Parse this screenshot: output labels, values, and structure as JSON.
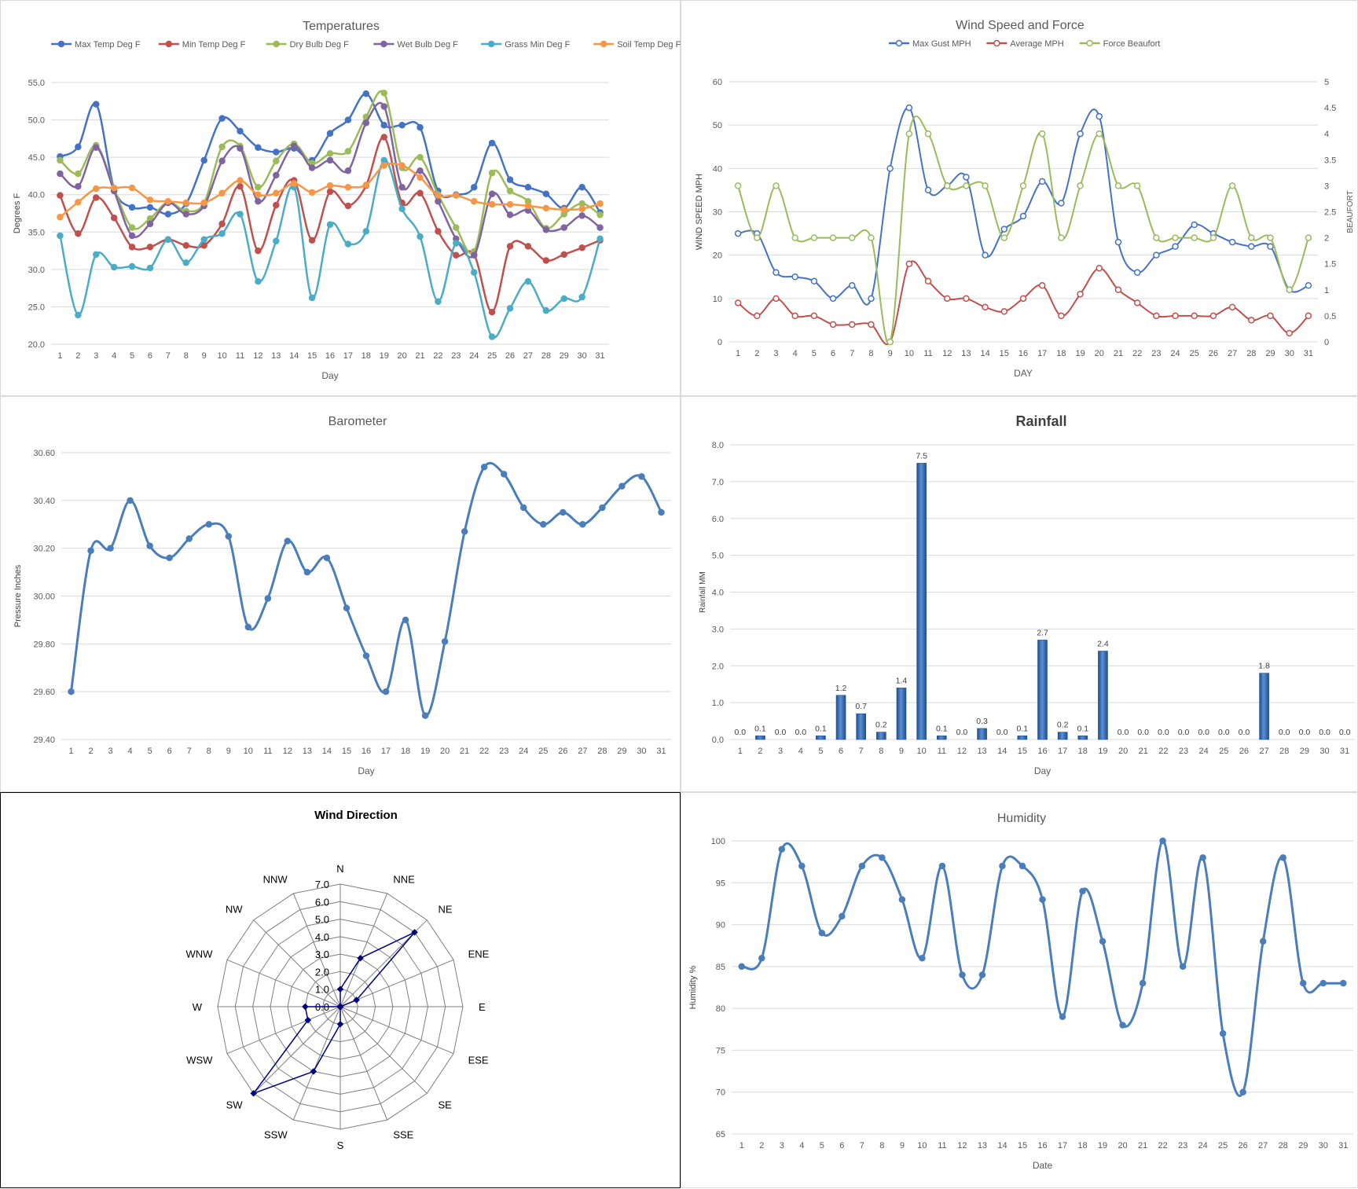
{
  "chart_data": [
    {
      "id": "temperatures",
      "type": "line",
      "title": "Temperatures",
      "xlabel": "Day",
      "ylabel": "Degrees F",
      "ylim": [
        20,
        55
      ],
      "yticks": [
        "20.0",
        "25.0",
        "30.0",
        "35.0",
        "40.0",
        "45.0",
        "50.0",
        "55.0"
      ],
      "grid": true,
      "legend": "top",
      "x": [
        1,
        2,
        3,
        4,
        5,
        6,
        7,
        8,
        9,
        10,
        11,
        12,
        13,
        14,
        15,
        16,
        17,
        18,
        19,
        20,
        21,
        22,
        23,
        24,
        25,
        26,
        27,
        28,
        29,
        30,
        31
      ],
      "series": [
        {
          "name": "Max Temp Deg F",
          "color": "#4472c4",
          "values": [
            45.1,
            46.4,
            52.1,
            40.8,
            38.3,
            38.3,
            37.4,
            38.8,
            44.6,
            50.2,
            48.5,
            46.3,
            45.7,
            46.2,
            44.6,
            48.2,
            50.0,
            53.5,
            49.3,
            49.3,
            49.0,
            40.5,
            40.0,
            41.0,
            46.9,
            42.0,
            41.0,
            40.1,
            38.2,
            41.0,
            37.6
          ]
        },
        {
          "name": "Min Temp Deg F",
          "color": "#c0504d",
          "values": [
            39.9,
            34.8,
            39.6,
            36.9,
            33.0,
            33.0,
            34.0,
            33.2,
            33.2,
            36.1,
            41.1,
            32.5,
            38.6,
            41.9,
            33.9,
            40.4,
            38.5,
            41.2,
            47.7,
            38.9,
            40.2,
            35.1,
            31.9,
            32.0,
            24.3,
            33.1,
            33.1,
            31.2,
            32.0,
            32.9,
            33.9
          ]
        },
        {
          "name": "Dry Bulb Deg F",
          "color": "#9bbb59",
          "values": [
            44.6,
            42.8,
            46.6,
            40.8,
            35.6,
            36.8,
            39.0,
            37.8,
            38.9,
            46.4,
            46.5,
            41.0,
            44.5,
            46.8,
            44.2,
            45.5,
            45.8,
            50.4,
            53.6,
            43.6,
            45.0,
            40.0,
            35.6,
            32.4,
            42.9,
            40.5,
            39.1,
            35.5,
            37.4,
            38.8,
            37.3
          ]
        },
        {
          "name": "Wet Bulb Deg F",
          "color": "#8064a2",
          "values": [
            42.8,
            41.1,
            46.3,
            40.5,
            34.5,
            36.1,
            38.9,
            37.4,
            38.5,
            44.5,
            46.2,
            39.1,
            42.6,
            46.5,
            43.6,
            44.6,
            43.2,
            49.6,
            51.8,
            41.0,
            43.2,
            39.1,
            34.1,
            31.9,
            40.1,
            37.3,
            37.9,
            35.3,
            35.6,
            37.2,
            35.6
          ]
        },
        {
          "name": "Grass Min Deg F",
          "color": "#4bacc6",
          "values": [
            34.5,
            23.9,
            32.0,
            30.3,
            30.4,
            30.2,
            34.0,
            30.9,
            34.0,
            34.8,
            37.4,
            28.4,
            33.8,
            41.0,
            26.2,
            36.0,
            33.4,
            35.1,
            44.6,
            38.1,
            34.4,
            25.7,
            33.5,
            29.6,
            21.0,
            24.8,
            28.4,
            24.5,
            26.1,
            26.3,
            34.1
          ]
        },
        {
          "name": "Soil Temp Deg F",
          "color": "#f79646",
          "values": [
            37.0,
            39.0,
            40.8,
            40.9,
            40.9,
            39.3,
            39.1,
            38.9,
            38.9,
            40.2,
            41.9,
            40.0,
            40.2,
            41.5,
            40.3,
            41.2,
            41.0,
            41.3,
            43.9,
            43.9,
            42.3,
            39.9,
            39.9,
            39.1,
            38.7,
            38.7,
            38.5,
            38.2,
            38.0,
            38.1,
            38.8
          ]
        }
      ]
    },
    {
      "id": "wind",
      "type": "line",
      "title": "Wind Speed and Force",
      "xlabel": "DAY",
      "ylabel": "WIND SPEED MPH",
      "ylabel_right": "BEAUFORT",
      "ylim": [
        0,
        60
      ],
      "ylim_right": [
        0,
        5
      ],
      "yticks": [
        "0",
        "10",
        "20",
        "30",
        "40",
        "50",
        "60"
      ],
      "yticks_right": [
        "0",
        "0.5",
        "1",
        "1.5",
        "2",
        "2.5",
        "3",
        "3.5",
        "4",
        "4.5",
        "5"
      ],
      "grid": true,
      "legend": "top",
      "x": [
        1,
        2,
        3,
        4,
        5,
        6,
        7,
        8,
        9,
        10,
        11,
        12,
        13,
        14,
        15,
        16,
        17,
        18,
        19,
        20,
        21,
        22,
        23,
        24,
        25,
        26,
        27,
        28,
        29,
        30,
        31
      ],
      "series": [
        {
          "name": "Max Gust MPH",
          "color": "#4472c4",
          "axis": "left",
          "values": [
            25,
            25,
            16,
            15,
            14,
            10,
            13,
            10,
            40,
            54,
            35,
            36,
            38,
            20,
            26,
            29,
            37,
            32,
            48,
            52,
            23,
            16,
            20,
            22,
            27,
            25,
            23,
            22,
            22,
            12,
            13
          ]
        },
        {
          "name": "Average MPH",
          "color": "#c0504d",
          "axis": "left",
          "values": [
            9,
            6,
            10,
            6,
            6,
            4,
            4,
            4,
            0,
            18,
            14,
            10,
            10,
            8,
            7,
            10,
            13,
            6,
            11,
            17,
            12,
            9,
            6,
            6,
            6,
            6,
            8,
            5,
            6,
            2,
            6
          ]
        },
        {
          "name": "Force Beaufort",
          "color": "#9bbb59",
          "axis": "right",
          "values": [
            3,
            2,
            3,
            2,
            2,
            2,
            2,
            2,
            0,
            4,
            4,
            3,
            3,
            3,
            2,
            3,
            4,
            2,
            3,
            4,
            3,
            3,
            2,
            2,
            2,
            2,
            3,
            2,
            2,
            1,
            2
          ]
        }
      ]
    },
    {
      "id": "barometer",
      "type": "line",
      "title": "Barometer",
      "xlabel": "Day",
      "ylabel": "Pressure Inches",
      "ylim": [
        29.4,
        30.6
      ],
      "yticks": [
        "29.40",
        "29.60",
        "29.80",
        "30.00",
        "30.20",
        "30.40",
        "30.60"
      ],
      "grid": true,
      "x": [
        1,
        2,
        3,
        4,
        5,
        6,
        7,
        8,
        9,
        10,
        11,
        12,
        13,
        14,
        15,
        16,
        17,
        18,
        19,
        20,
        21,
        22,
        23,
        24,
        25,
        26,
        27,
        28,
        29,
        30,
        31
      ],
      "series": [
        {
          "color": "#4a7ebb",
          "values": [
            29.6,
            30.19,
            30.2,
            30.4,
            30.21,
            30.16,
            30.24,
            30.3,
            30.25,
            29.87,
            29.99,
            30.23,
            30.1,
            30.16,
            29.95,
            29.75,
            29.6,
            29.9,
            29.5,
            29.81,
            30.27,
            30.54,
            30.51,
            30.37,
            30.3,
            30.35,
            30.3,
            30.37,
            30.46,
            30.5,
            30.35
          ]
        }
      ]
    },
    {
      "id": "rainfall",
      "type": "bar",
      "title": "Rainfall",
      "xlabel": "Day",
      "ylabel": "Rainfall MM",
      "ylim": [
        0,
        8
      ],
      "yticks": [
        "0.0",
        "1.0",
        "2.0",
        "3.0",
        "4.0",
        "5.0",
        "6.0",
        "7.0",
        "8.0"
      ],
      "grid": true,
      "categories": [
        "1",
        "2",
        "3",
        "4",
        "5",
        "6",
        "7",
        "8",
        "9",
        "10",
        "11",
        "12",
        "13",
        "14",
        "15",
        "16",
        "17",
        "18",
        "19",
        "20",
        "21",
        "22",
        "23",
        "24",
        "25",
        "26",
        "27",
        "28",
        "29",
        "30",
        "31"
      ],
      "values": [
        0.0,
        0.1,
        0.0,
        0.0,
        0.1,
        1.2,
        0.7,
        0.2,
        1.4,
        7.5,
        0.1,
        0.0,
        0.3,
        0.0,
        0.1,
        2.7,
        0.2,
        0.1,
        2.4,
        0.0,
        0.0,
        0.0,
        0.0,
        0.0,
        0.0,
        0.0,
        1.8,
        0.0,
        0.0,
        0.0,
        0.0
      ],
      "data_labels": [
        "0.0",
        "0.1",
        "0.0",
        "0.0",
        "0.1",
        "1.2",
        "0.7",
        "0.2",
        "1.4",
        "7.5",
        "0.1",
        "0.0",
        "0.3",
        "0.0",
        "0.1",
        "2.7",
        "0.2",
        "0.1",
        "2.4",
        "0.0",
        "0.0",
        "0.0",
        "0.0",
        "0.0",
        "0.0",
        "0.0",
        "1.8",
        "0.0",
        "0.0",
        "0.0",
        "0.0"
      ],
      "color": "#3d6fb5"
    },
    {
      "id": "wind_direction",
      "type": "radar",
      "title": "Wind Direction",
      "rlim": [
        0,
        7
      ],
      "rticks": [
        "0.0",
        "1.0",
        "2.0",
        "3.0",
        "4.0",
        "5.0",
        "6.0",
        "7.0"
      ],
      "categories": [
        "N",
        "NNE",
        "NE",
        "ENE",
        "E",
        "ESE",
        "SE",
        "SSE",
        "S",
        "SSW",
        "SW",
        "WSW",
        "W",
        "WNW",
        "NW",
        "NNW"
      ],
      "values": [
        1,
        3,
        6,
        1,
        0,
        0,
        0,
        0,
        1,
        4,
        7,
        2,
        2,
        0,
        0,
        0
      ],
      "color": "#000080"
    },
    {
      "id": "humidity",
      "type": "line",
      "title": "Humidity",
      "xlabel": "Date",
      "ylabel": "Humidity %",
      "ylim": [
        65,
        100
      ],
      "yticks": [
        "65",
        "70",
        "75",
        "80",
        "85",
        "90",
        "95",
        "100"
      ],
      "grid": true,
      "x": [
        1,
        2,
        3,
        4,
        5,
        6,
        7,
        8,
        9,
        10,
        11,
        12,
        13,
        14,
        15,
        16,
        17,
        18,
        19,
        20,
        21,
        22,
        23,
        24,
        25,
        26,
        27,
        28,
        29,
        30,
        31
      ],
      "series": [
        {
          "color": "#4a7ebb",
          "values": [
            85,
            86,
            99,
            97,
            89,
            91,
            97,
            98,
            93,
            86,
            97,
            84,
            84,
            97,
            97,
            93,
            79,
            94,
            88,
            78,
            83,
            100,
            85,
            98,
            77,
            70,
            88,
            98,
            83,
            83,
            83
          ]
        }
      ]
    }
  ]
}
